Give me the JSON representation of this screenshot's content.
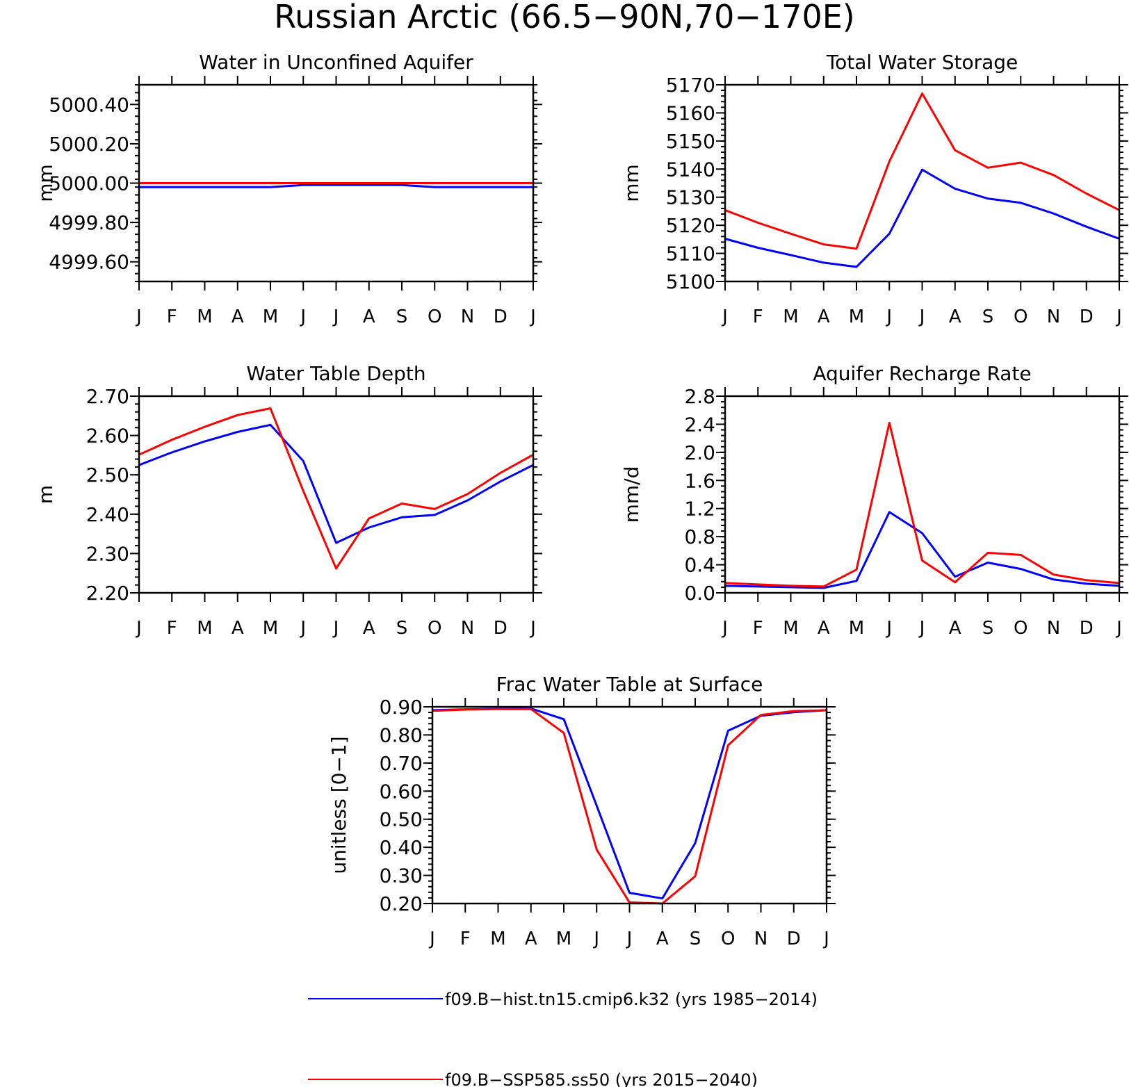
{
  "figure_title": "Russian Arctic (66.5−90N,70−170E)",
  "legend": {
    "entries": [
      {
        "label": "f09.B−hist.tn15.cmip6.k32 (yrs 1985−2014)",
        "color": "#0000ff"
      },
      {
        "label": "f09.B−SSP585.ss50 (yrs 2015−2040)",
        "color": "#ff0000"
      }
    ]
  },
  "chart_data": [
    {
      "type": "line",
      "title": "Water in Unconfined Aquifer",
      "ylabel": "mm",
      "categories": [
        "J",
        "F",
        "M",
        "A",
        "M",
        "J",
        "J",
        "A",
        "S",
        "O",
        "N",
        "D",
        "J"
      ],
      "ylim": [
        4999.5,
        5000.5
      ],
      "yticks": [
        "5000.40",
        "5000.20",
        "5000.00",
        "4999.80",
        "4999.60"
      ],
      "ytick_values": [
        5000.4,
        5000.2,
        5000.0,
        4999.8,
        4999.6
      ],
      "series": [
        {
          "color": "#0000ff",
          "values": [
            4999.98,
            4999.98,
            4999.98,
            4999.98,
            4999.98,
            4999.99,
            4999.99,
            4999.99,
            4999.99,
            4999.98,
            4999.98,
            4999.98,
            4999.98
          ]
        },
        {
          "color": "#ff0000",
          "values": [
            5000.0,
            5000.0,
            5000.0,
            5000.0,
            5000.0,
            5000.0,
            5000.0,
            5000.0,
            5000.0,
            5000.0,
            5000.0,
            5000.0,
            5000.0
          ]
        }
      ]
    },
    {
      "type": "line",
      "title": "Total Water Storage",
      "ylabel": "mm",
      "categories": [
        "J",
        "F",
        "M",
        "A",
        "M",
        "J",
        "J",
        "A",
        "S",
        "O",
        "N",
        "D",
        "J"
      ],
      "ylim": [
        5100,
        5170
      ],
      "yticks": [
        "5170",
        "5160",
        "5150",
        "5140",
        "5130",
        "5120",
        "5110",
        "5100"
      ],
      "ytick_values": [
        5170,
        5160,
        5150,
        5140,
        5130,
        5120,
        5110,
        5100
      ],
      "series": [
        {
          "color": "#0000ff",
          "values": [
            5115.2,
            5112.0,
            5109.4,
            5106.7,
            5105.2,
            5117.0,
            5139.8,
            5133.0,
            5129.5,
            5128.0,
            5124.2,
            5119.5,
            5115.2
          ]
        },
        {
          "color": "#ff0000",
          "values": [
            5125.4,
            5120.9,
            5117.0,
            5113.2,
            5111.7,
            5142.7,
            5166.9,
            5146.7,
            5140.5,
            5142.3,
            5137.9,
            5131.3,
            5125.4
          ]
        }
      ]
    },
    {
      "type": "line",
      "title": "Water Table Depth",
      "ylabel": "m",
      "categories": [
        "J",
        "F",
        "M",
        "A",
        "M",
        "J",
        "J",
        "A",
        "S",
        "O",
        "N",
        "D",
        "J"
      ],
      "ylim": [
        2.2,
        2.7
      ],
      "yticks": [
        "2.70",
        "2.60",
        "2.50",
        "2.40",
        "2.30",
        "2.20"
      ],
      "ytick_values": [
        2.7,
        2.6,
        2.5,
        2.4,
        2.3,
        2.2
      ],
      "series": [
        {
          "color": "#0000ff",
          "values": [
            2.525,
            2.557,
            2.585,
            2.609,
            2.627,
            2.535,
            2.327,
            2.366,
            2.392,
            2.398,
            2.435,
            2.483,
            2.525
          ]
        },
        {
          "color": "#ff0000",
          "values": [
            2.551,
            2.589,
            2.622,
            2.652,
            2.669,
            2.459,
            2.262,
            2.389,
            2.427,
            2.413,
            2.451,
            2.505,
            2.551
          ]
        }
      ]
    },
    {
      "type": "line",
      "title": "Aquifer Recharge Rate",
      "ylabel": "mm/d",
      "categories": [
        "J",
        "F",
        "M",
        "A",
        "M",
        "J",
        "J",
        "A",
        "S",
        "O",
        "N",
        "D",
        "J"
      ],
      "ylim": [
        0.0,
        2.8
      ],
      "yticks": [
        "2.8",
        "2.4",
        "2.0",
        "1.6",
        "1.2",
        "0.8",
        "0.4",
        "0.0"
      ],
      "ytick_values": [
        2.8,
        2.4,
        2.0,
        1.6,
        1.2,
        0.8,
        0.4,
        0.0
      ],
      "series": [
        {
          "color": "#0000ff",
          "values": [
            0.1,
            0.09,
            0.08,
            0.07,
            0.17,
            1.15,
            0.85,
            0.23,
            0.43,
            0.34,
            0.19,
            0.13,
            0.1
          ]
        },
        {
          "color": "#ff0000",
          "values": [
            0.14,
            0.12,
            0.1,
            0.09,
            0.33,
            2.42,
            0.46,
            0.15,
            0.57,
            0.54,
            0.26,
            0.18,
            0.14
          ]
        }
      ]
    },
    {
      "type": "line",
      "title": "Frac Water Table at Surface",
      "ylabel": "unitless [0−1]",
      "categories": [
        "J",
        "F",
        "M",
        "A",
        "M",
        "J",
        "J",
        "A",
        "S",
        "O",
        "N",
        "D",
        "J"
      ],
      "ylim": [
        0.2,
        0.9
      ],
      "yticks": [
        "0.90",
        "0.80",
        "0.70",
        "0.60",
        "0.50",
        "0.40",
        "0.30",
        "0.20"
      ],
      "ytick_values": [
        0.9,
        0.8,
        0.7,
        0.6,
        0.5,
        0.4,
        0.3,
        0.2
      ],
      "series": [
        {
          "color": "#0000ff",
          "values": [
            0.888,
            0.891,
            0.893,
            0.894,
            0.856,
            0.548,
            0.238,
            0.218,
            0.415,
            0.815,
            0.868,
            0.881,
            0.888
          ]
        },
        {
          "color": "#ff0000",
          "values": [
            0.886,
            0.89,
            0.892,
            0.892,
            0.807,
            0.392,
            0.204,
            0.2,
            0.297,
            0.763,
            0.871,
            0.885,
            0.888
          ]
        }
      ]
    }
  ]
}
